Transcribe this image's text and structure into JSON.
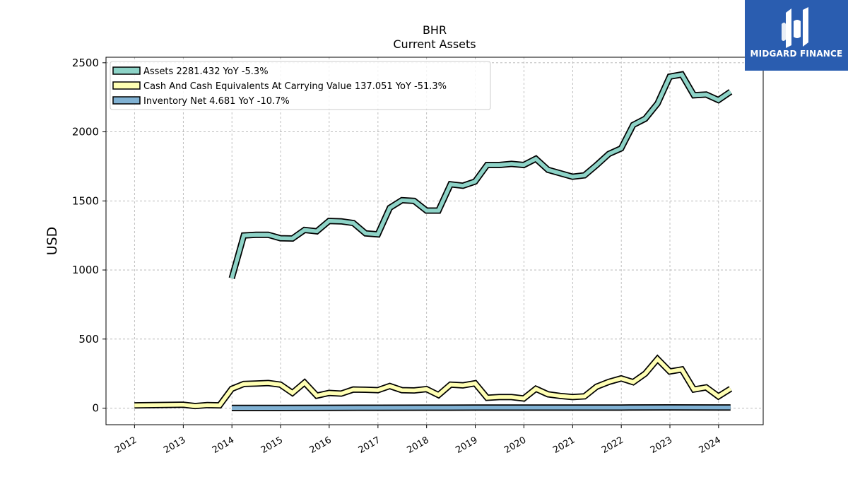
{
  "chart_data": {
    "type": "line",
    "title": "BHR",
    "subtitle": "Current  Assets",
    "ylabel": "USD",
    "ylim": [
      -120,
      2540
    ],
    "xlim": [
      "2011-06-01",
      "2024-12-01"
    ],
    "yticks": [
      0,
      500,
      1000,
      1500,
      2000,
      2500
    ],
    "xticks": [
      "2012",
      "2013",
      "2014",
      "2015",
      "2016",
      "2017",
      "2018",
      "2019",
      "2020",
      "2021",
      "2022",
      "2023",
      "2024"
    ],
    "grid": true,
    "legend_position": "top-left",
    "series": [
      {
        "name": "Assets  2281.432 YoY -5.3%",
        "color": "#8dd3c7",
        "x": [
          "2013-12-31",
          "2014-03-31",
          "2014-06-30",
          "2014-09-30",
          "2014-12-31",
          "2015-03-31",
          "2015-06-30",
          "2015-09-30",
          "2015-12-31",
          "2016-03-31",
          "2016-06-30",
          "2016-09-30",
          "2016-12-31",
          "2017-03-31",
          "2017-06-30",
          "2017-09-30",
          "2017-12-31",
          "2018-03-31",
          "2018-06-30",
          "2018-09-30",
          "2018-12-31",
          "2019-03-31",
          "2019-06-30",
          "2019-09-30",
          "2019-12-31",
          "2020-03-31",
          "2020-06-30",
          "2020-09-30",
          "2020-12-31",
          "2021-03-31",
          "2021-06-30",
          "2021-09-30",
          "2021-12-31",
          "2022-03-31",
          "2022-06-30",
          "2022-09-30",
          "2022-12-31",
          "2023-03-31",
          "2023-06-30",
          "2023-09-30",
          "2023-12-31",
          "2024-03-31"
        ],
        "values": [
          940,
          1250,
          1255,
          1255,
          1230,
          1228,
          1290,
          1280,
          1355,
          1352,
          1340,
          1265,
          1258,
          1450,
          1505,
          1500,
          1430,
          1430,
          1620,
          1610,
          1640,
          1760,
          1760,
          1768,
          1760,
          1805,
          1725,
          1700,
          1675,
          1685,
          1760,
          1840,
          1880,
          2050,
          2095,
          2205,
          2400,
          2415,
          2265,
          2270,
          2230,
          2290
        ]
      },
      {
        "name": "Cash And Cash Equivalents At Carrying Value  137.051 YoY -51.3%",
        "color": "#ffffb3",
        "x": [
          "2011-12-31",
          "2012-12-31",
          "2013-03-31",
          "2013-06-30",
          "2013-09-30",
          "2013-12-31",
          "2014-03-31",
          "2014-06-30",
          "2014-09-30",
          "2014-12-31",
          "2015-03-31",
          "2015-06-30",
          "2015-09-30",
          "2015-12-31",
          "2016-03-31",
          "2016-06-30",
          "2016-09-30",
          "2016-12-31",
          "2017-03-31",
          "2017-06-30",
          "2017-09-30",
          "2017-12-31",
          "2018-03-31",
          "2018-06-30",
          "2018-09-30",
          "2018-12-31",
          "2019-03-31",
          "2019-06-30",
          "2019-09-30",
          "2019-12-31",
          "2020-03-31",
          "2020-06-30",
          "2020-09-30",
          "2020-12-31",
          "2021-03-31",
          "2021-06-30",
          "2021-09-30",
          "2021-12-31",
          "2022-03-31",
          "2022-06-30",
          "2022-09-30",
          "2022-12-31",
          "2023-03-31",
          "2023-06-30",
          "2023-09-30",
          "2023-12-31",
          "2024-03-31"
        ],
        "values": [
          20,
          25,
          15,
          22,
          20,
          140,
          175,
          178,
          182,
          170,
          110,
          185,
          90,
          110,
          105,
          135,
          133,
          130,
          160,
          130,
          128,
          138,
          95,
          170,
          165,
          180,
          75,
          80,
          80,
          70,
          140,
          100,
          88,
          80,
          85,
          155,
          190,
          215,
          188,
          250,
          355,
          265,
          280,
          135,
          150,
          85,
          140
        ]
      },
      {
        "name": "Inventory Net  4.681 YoY -10.7%",
        "color": "#80b1d3",
        "x": [
          "2013-12-31",
          "2014-12-31",
          "2015-12-31",
          "2016-12-31",
          "2017-12-31",
          "2018-12-31",
          "2019-12-31",
          "2020-12-31",
          "2021-12-31",
          "2022-12-31",
          "2023-12-31",
          "2024-03-31"
        ],
        "values": [
          2,
          2,
          2.5,
          3,
          3.5,
          4,
          4,
          4,
          4.5,
          5.2,
          5,
          4.7
        ]
      }
    ]
  },
  "logo": {
    "text": "MIDGARD FINANCE"
  }
}
